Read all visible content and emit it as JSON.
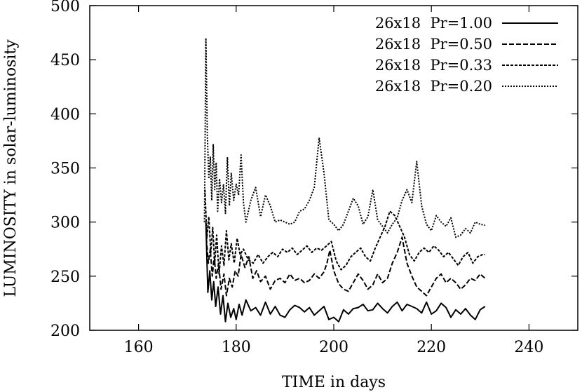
{
  "chart_data": {
    "type": "line",
    "title": "",
    "xlabel": "TIME in days",
    "ylabel": "LUMINOSITY in solar-luminosity",
    "xlim": [
      150,
      250
    ],
    "ylim": [
      200,
      500
    ],
    "xticks": [
      "160",
      "180",
      "200",
      "220",
      "240"
    ],
    "xtick_values": [
      160,
      180,
      200,
      220,
      240
    ],
    "yticks": [
      "200",
      "250",
      "300",
      "350",
      "400",
      "450",
      "500"
    ],
    "ytick_values": [
      200,
      250,
      300,
      350,
      400,
      450,
      500
    ],
    "grid": false,
    "legend_position": "top-right",
    "series": [
      {
        "name": "26x18  Pr=1.00",
        "dash": "solid",
        "x": [
          173.8,
          174.2,
          174.6,
          175.0,
          175.4,
          175.8,
          176.3,
          176.8,
          177.3,
          177.8,
          178.3,
          178.9,
          179.5,
          180.0,
          180.6,
          181.2,
          182.0,
          183.0,
          184.0,
          185.0,
          186.0,
          187.0,
          188.0,
          189.0,
          190.0,
          191.0,
          192.0,
          193.0,
          194.0,
          195.0,
          196.0,
          197.0,
          198.0,
          199.0,
          200.0,
          201.0,
          202.0,
          203.0,
          204.0,
          205.0,
          206.0,
          207.0,
          208.0,
          209.0,
          210.0,
          211.0,
          212.0,
          213.0,
          214.0,
          215.0,
          216.0,
          217.0,
          218.0,
          219.0,
          220.0,
          221.0,
          222.0,
          223.0,
          224.0,
          225.0,
          226.0,
          227.0,
          228.0,
          229.0,
          230.0,
          231.0
        ],
        "y": [
          300,
          235,
          255,
          228,
          245,
          222,
          240,
          215,
          232,
          208,
          225,
          212,
          220,
          210,
          224,
          214,
          228,
          218,
          221,
          214,
          226,
          215,
          222,
          214,
          212,
          219,
          223,
          221,
          217,
          221,
          214,
          218,
          222,
          210,
          212,
          208,
          219,
          215,
          220,
          221,
          224,
          218,
          219,
          225,
          220,
          216,
          222,
          226,
          218,
          224,
          222,
          220,
          216,
          226,
          215,
          218,
          225,
          221,
          212,
          219,
          215,
          220,
          214,
          210,
          219,
          222
        ]
      },
      {
        "name": "26x18  Pr=0.50",
        "dash": "long",
        "x": [
          173.9,
          174.3,
          174.7,
          175.1,
          175.5,
          175.9,
          176.4,
          176.9,
          177.5,
          178.0,
          178.6,
          179.2,
          179.8,
          180.4,
          181.0,
          181.8,
          182.6,
          183.4,
          184.2,
          185.0,
          186.0,
          187.0,
          188.0,
          189.0,
          190.0,
          191.0,
          192.0,
          193.0,
          194.0,
          195.0,
          196.0,
          197.0,
          198.0,
          198.6,
          199.2,
          200.0,
          201.0,
          202.0,
          203.0,
          204.0,
          205.0,
          206.0,
          207.0,
          208.0,
          209.0,
          210.0,
          211.0,
          212.0,
          213.0,
          214.0,
          215.0,
          216.0,
          217.0,
          218.0,
          219.0,
          220.0,
          221.0,
          222.0,
          223.0,
          224.0,
          225.0,
          226.0,
          227.0,
          228.0,
          229.0,
          230.0,
          231.0
        ],
        "y": [
          285,
          262,
          275,
          250,
          268,
          248,
          262,
          238,
          252,
          232,
          248,
          240,
          255,
          250,
          270,
          258,
          268,
          248,
          255,
          245,
          250,
          238,
          246,
          248,
          244,
          252,
          246,
          248,
          244,
          246,
          252,
          248,
          254,
          262,
          274,
          255,
          243,
          238,
          236,
          244,
          252,
          246,
          238,
          242,
          252,
          244,
          248,
          262,
          272,
          286,
          262,
          250,
          240,
          236,
          232,
          240,
          248,
          252,
          244,
          248,
          244,
          238,
          242,
          248,
          246,
          252,
          248
        ]
      },
      {
        "name": "26x18  Pr=0.33",
        "dash": "short",
        "x": [
          173.6,
          174.0,
          174.4,
          174.8,
          175.2,
          175.6,
          176.0,
          176.5,
          177.0,
          177.5,
          178.0,
          178.5,
          179.0,
          179.6,
          180.2,
          180.8,
          181.5,
          182.5,
          183.5,
          184.5,
          185.5,
          186.5,
          187.5,
          188.5,
          189.5,
          190.5,
          191.5,
          192.5,
          193.5,
          194.5,
          195.5,
          196.5,
          197.5,
          198.5,
          199.5,
          200.5,
          201.5,
          202.5,
          203.5,
          204.5,
          205.5,
          206.5,
          207.5,
          208.5,
          209.5,
          210.5,
          211.5,
          212.5,
          213.5,
          214.5,
          215.5,
          216.5,
          217.5,
          218.5,
          219.5,
          220.5,
          221.5,
          222.5,
          223.5,
          224.5,
          225.5,
          226.5,
          227.5,
          228.5,
          229.5,
          230.5,
          231.0
        ],
        "y": [
          330,
          285,
          305,
          272,
          295,
          262,
          288,
          252,
          278,
          260,
          292,
          265,
          280,
          262,
          285,
          270,
          275,
          265,
          262,
          270,
          262,
          268,
          272,
          268,
          275,
          272,
          276,
          270,
          274,
          278,
          272,
          276,
          274,
          278,
          282,
          264,
          256,
          260,
          268,
          272,
          276,
          268,
          264,
          276,
          286,
          296,
          310,
          306,
          296,
          286,
          270,
          264,
          272,
          276,
          272,
          278,
          274,
          268,
          272,
          266,
          260,
          268,
          272,
          262,
          268,
          270,
          270
        ]
      },
      {
        "name": "26x18  Pr=0.20",
        "dash": "dot",
        "x": [
          173.5,
          173.8,
          174.1,
          174.4,
          174.7,
          175.0,
          175.3,
          175.6,
          175.9,
          176.2,
          176.6,
          177.0,
          177.4,
          177.8,
          178.2,
          178.6,
          179.0,
          179.5,
          180.0,
          180.5,
          181.0,
          181.5,
          182.0,
          183.0,
          184.0,
          185.0,
          186.0,
          187.0,
          188.0,
          189.0,
          190.0,
          191.0,
          192.0,
          193.0,
          194.0,
          195.0,
          196.0,
          197.0,
          198.0,
          199.0,
          200.0,
          201.0,
          202.0,
          203.0,
          204.0,
          205.0,
          206.0,
          207.0,
          208.0,
          209.0,
          210.0,
          211.0,
          212.0,
          213.0,
          214.0,
          215.0,
          216.0,
          217.0,
          218.0,
          219.0,
          220.0,
          221.0,
          222.0,
          223.0,
          224.0,
          225.0,
          226.0,
          227.0,
          228.0,
          229.0,
          230.0,
          231.0
        ],
        "y": [
          300,
          470,
          380,
          340,
          360,
          320,
          372,
          330,
          355,
          310,
          340,
          318,
          335,
          308,
          360,
          315,
          345,
          320,
          335,
          325,
          362,
          318,
          300,
          320,
          332,
          305,
          325,
          315,
          300,
          302,
          300,
          298,
          300,
          310,
          312,
          320,
          332,
          378,
          345,
          302,
          298,
          292,
          298,
          310,
          322,
          315,
          298,
          305,
          330,
          302,
          296,
          290,
          298,
          304,
          320,
          330,
          318,
          356,
          315,
          298,
          292,
          306,
          300,
          296,
          304,
          286,
          288,
          294,
          290,
          300,
          298,
          297
        ]
      }
    ]
  }
}
